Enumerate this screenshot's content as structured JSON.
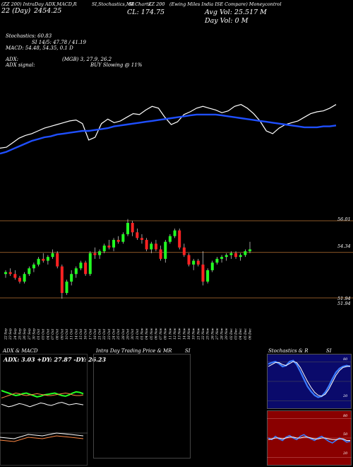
{
  "header": {
    "line1_left": "(ZZ 200) IntraDay ADX,MACD,R",
    "line1_mid1": "SI,Stochastics,MR",
    "line1_mid2": "SI Charts",
    "line1_mid3": "ZZ 200",
    "line1_right": "(Ewing Miles India ISE Compare) Moneycontrol",
    "date_text": "22 (Day)",
    "date_value": "2454.25",
    "close_text": "CL: 174.75",
    "avg_vol_text": "Avg Vol: 25.517 M",
    "day_vol_text": "Day Vol: 0   M"
  },
  "indicators": {
    "stochastics": "Stochastics: 60.83",
    "si_line": "SI 14/5: 47.78 / 41.19",
    "macd": "MACD: 54.48, 54.35, 0.1 D",
    "adx": "ADX:",
    "adx_value": "(MGB) 3, 27.9, 26.2",
    "adx_signal": "ADX  signal:",
    "adx_signal_value": "BUY Slowing @ 11%"
  },
  "price_axis": {
    "top_label": "56.01",
    "top_label2": "56.01",
    "mid_label": "54.34",
    "low_label": "51.94",
    "low_label2": "51.94"
  },
  "chart_data": [
    {
      "type": "line",
      "title": "",
      "series": [
        {
          "color": "#ffffff",
          "values": [
            36,
            37,
            42,
            47,
            50,
            52,
            55,
            58,
            60,
            62,
            64,
            66,
            67,
            63,
            45,
            48,
            63,
            68,
            64,
            66,
            70,
            74,
            73,
            78,
            82,
            80,
            70,
            62,
            65,
            73,
            76,
            80,
            82,
            80,
            78,
            75,
            77,
            82,
            84,
            80,
            74,
            66,
            55,
            52,
            58,
            62,
            64,
            66,
            70,
            74,
            76,
            77,
            80,
            84
          ]
        },
        {
          "color": "#1f4fff",
          "values": [
            30,
            32,
            35,
            38,
            41,
            44,
            46,
            48,
            49,
            51,
            52,
            53,
            54,
            55,
            55,
            56,
            57,
            58,
            60,
            61,
            62,
            63,
            64,
            65,
            66,
            67,
            68,
            69,
            70,
            71,
            72,
            73,
            73,
            73,
            73,
            72,
            71,
            70,
            69,
            68,
            67,
            66,
            65,
            64,
            63,
            62,
            61,
            60,
            59,
            59,
            59,
            60,
            60,
            61
          ]
        }
      ]
    },
    {
      "type": "candlestick",
      "title": "",
      "x": [
        "22 Sep",
        "23 Sep",
        "24 Sep",
        "25 Sep",
        "26 Sep",
        "27 Sep",
        "30 Sep",
        "01 Oct",
        "03 Oct",
        "04 Oct",
        "07 Oct",
        "08 Oct",
        "09 Oct",
        "10 Oct",
        "11 Oct",
        "14 Oct",
        "15 Oct",
        "16 Oct",
        "17 Oct",
        "18 Oct",
        "21 Oct",
        "22 Oct",
        "23 Oct",
        "24 Oct",
        "25 Oct",
        "28 Oct",
        "29 Oct",
        "30 Oct",
        "31 Oct",
        "01 Nov",
        "04 Nov",
        "05 Nov",
        "06 Nov",
        "07 Nov",
        "08 Nov",
        "11 Nov",
        "12 Nov",
        "13 Nov",
        "14 Nov",
        "18 Nov",
        "19 Nov",
        "21 Nov",
        "22 Nov",
        "25 Nov",
        "26 Nov",
        "27 Nov",
        "28 Nov",
        "29 Nov",
        "02 Dec",
        "03 Dec",
        "04 Dec",
        "05 Dec",
        "06 Dec"
      ],
      "ylim": [
        51.94,
        56.01
      ],
      "candles": [
        [
          53.2,
          53.4,
          53.0,
          53.3
        ],
        [
          53.3,
          53.5,
          53.1,
          53.2
        ],
        [
          53.2,
          53.4,
          52.9,
          53.0
        ],
        [
          53.0,
          53.1,
          52.7,
          52.8
        ],
        [
          52.8,
          53.3,
          52.7,
          53.2
        ],
        [
          53.2,
          53.6,
          53.1,
          53.5
        ],
        [
          53.5,
          53.8,
          53.3,
          53.7
        ],
        [
          53.7,
          54.1,
          53.6,
          54.0
        ],
        [
          54.0,
          54.3,
          53.8,
          53.9
        ],
        [
          53.9,
          54.2,
          53.7,
          54.1
        ],
        [
          54.1,
          54.5,
          54.0,
          54.3
        ],
        [
          54.3,
          54.4,
          53.5,
          53.6
        ],
        [
          53.6,
          53.7,
          51.9,
          52.2
        ],
        [
          52.2,
          52.9,
          52.1,
          52.8
        ],
        [
          52.8,
          53.4,
          52.6,
          53.2
        ],
        [
          53.2,
          53.6,
          53.0,
          53.5
        ],
        [
          53.5,
          53.9,
          53.4,
          53.8
        ],
        [
          53.8,
          53.9,
          53.1,
          53.2
        ],
        [
          53.2,
          54.4,
          53.1,
          54.3
        ],
        [
          54.3,
          54.6,
          54.0,
          54.2
        ],
        [
          54.2,
          54.5,
          54.0,
          54.4
        ],
        [
          54.4,
          54.8,
          54.3,
          54.7
        ],
        [
          54.7,
          55.0,
          54.5,
          54.6
        ],
        [
          54.6,
          55.1,
          54.4,
          55.0
        ],
        [
          55.0,
          55.2,
          54.8,
          54.9
        ],
        [
          54.9,
          55.4,
          54.8,
          55.3
        ],
        [
          55.3,
          56.1,
          55.2,
          55.9
        ],
        [
          55.9,
          56.0,
          55.2,
          55.4
        ],
        [
          55.4,
          55.6,
          55.0,
          55.1
        ],
        [
          55.1,
          55.3,
          54.8,
          55.0
        ],
        [
          55.0,
          55.1,
          54.4,
          54.5
        ],
        [
          54.5,
          54.9,
          54.3,
          54.8
        ],
        [
          54.8,
          55.0,
          54.4,
          54.5
        ],
        [
          54.5,
          54.7,
          53.9,
          54.0
        ],
        [
          54.0,
          55.0,
          53.8,
          54.9
        ],
        [
          54.9,
          55.3,
          54.8,
          55.2
        ],
        [
          55.2,
          55.6,
          55.1,
          55.5
        ],
        [
          55.5,
          55.6,
          54.5,
          54.6
        ],
        [
          54.6,
          54.8,
          54.1,
          54.2
        ],
        [
          54.2,
          54.3,
          53.6,
          53.7
        ],
        [
          53.7,
          54.0,
          53.4,
          53.9
        ],
        [
          53.9,
          54.0,
          53.6,
          53.7
        ],
        [
          53.7,
          54.4,
          52.6,
          52.8
        ],
        [
          52.8,
          53.5,
          52.7,
          53.4
        ],
        [
          53.4,
          53.9,
          53.3,
          53.8
        ],
        [
          53.8,
          54.1,
          53.7,
          54.0
        ],
        [
          54.0,
          54.2,
          53.8,
          54.1
        ],
        [
          54.1,
          54.3,
          53.9,
          54.2
        ],
        [
          54.2,
          54.4,
          54.0,
          54.3
        ],
        [
          54.3,
          54.4,
          54.0,
          54.1
        ],
        [
          54.1,
          54.3,
          53.9,
          54.2
        ],
        [
          54.2,
          54.5,
          54.1,
          54.4
        ],
        [
          54.4,
          54.9,
          54.3,
          54.5
        ]
      ]
    },
    {
      "type": "line",
      "title": "ADX  & MACD",
      "panel_label": "ADX: 3.03  +DY: 27.87  -DY: 26.23",
      "series": [
        {
          "color": "#22ff22",
          "values": [
            52,
            50,
            48,
            46,
            44,
            45,
            47,
            48,
            46,
            44,
            42,
            43,
            45,
            46,
            47,
            48,
            46,
            44,
            43,
            45,
            48,
            50,
            49,
            47
          ]
        },
        {
          "color": "#ff8844",
          "values": [
            40,
            42,
            44,
            46,
            48,
            47,
            45,
            44,
            45,
            46,
            47,
            46,
            45,
            44,
            44,
            45,
            46,
            47,
            48,
            47,
            45,
            44,
            44,
            45
          ]
        },
        {
          "color": "#ffffff",
          "values": [
            30,
            28,
            26,
            27,
            29,
            31,
            30,
            28,
            26,
            28,
            30,
            32,
            31,
            29,
            28,
            30,
            32,
            33,
            31,
            29,
            30,
            31,
            30,
            29
          ]
        }
      ]
    },
    {
      "type": "candlestick",
      "title": "Intra  Day Trading Price  & MR",
      "panel_label": "SI"
    },
    {
      "type": "line",
      "title": "Stochastics & R",
      "panel_label": "SI",
      "right_labels": [
        "80",
        "20"
      ],
      "series": [
        {
          "color": "#3a7bff",
          "values": [
            85,
            88,
            90,
            86,
            80,
            82,
            90,
            92,
            84,
            70,
            55,
            40,
            30,
            22,
            18,
            20,
            28,
            40,
            55,
            68,
            76,
            80,
            82,
            80
          ]
        },
        {
          "color": "#ffffff",
          "values": [
            80,
            84,
            88,
            88,
            84,
            82,
            86,
            90,
            88,
            78,
            64,
            50,
            38,
            28,
            22,
            20,
            24,
            34,
            48,
            62,
            72,
            78,
            80,
            81
          ]
        }
      ]
    },
    {
      "type": "line",
      "title": "",
      "right_labels": [
        "80",
        "50",
        "20"
      ],
      "series": [
        {
          "color": "#3a7bff",
          "values": [
            50,
            48,
            52,
            49,
            47,
            51,
            53,
            50,
            48,
            52,
            54,
            51,
            49,
            47,
            50,
            52,
            49,
            46,
            44,
            47,
            50,
            48,
            45,
            46
          ]
        },
        {
          "color": "#ffffff",
          "values": [
            48,
            49,
            50,
            50,
            49,
            50,
            51,
            51,
            50,
            50,
            51,
            51,
            50,
            49,
            49,
            50,
            50,
            49,
            48,
            48,
            49,
            49,
            47,
            47
          ]
        }
      ]
    }
  ]
}
